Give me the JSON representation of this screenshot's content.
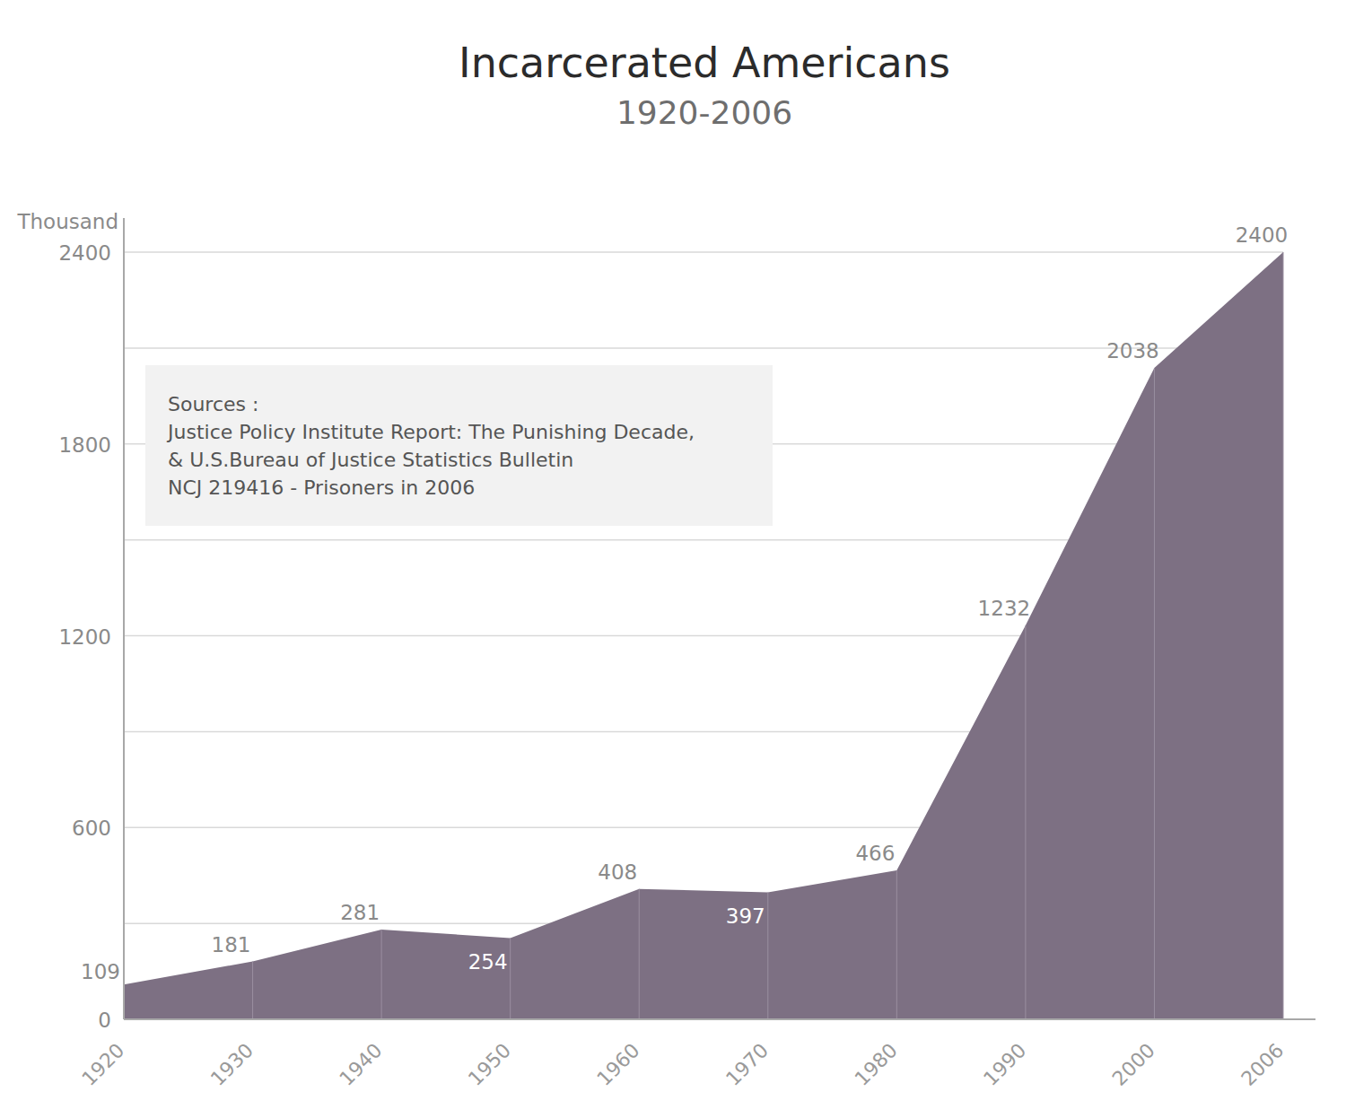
{
  "chart_data": {
    "type": "area",
    "title": "Incarcerated Americans",
    "subtitle": "1920-2006",
    "y_label": "Thousand",
    "categories": [
      "1920",
      "1930",
      "1940",
      "1950",
      "1960",
      "1970",
      "1980",
      "1990",
      "2000",
      "2006"
    ],
    "values": [
      109,
      181,
      281,
      254,
      408,
      397,
      466,
      1232,
      2038,
      2400
    ],
    "color": "#7d7083",
    "ylim": [
      0,
      2400
    ],
    "yticks": [
      0,
      600,
      1200,
      1800,
      2400
    ],
    "grid": true,
    "data_labels": true,
    "annotations": [
      "Sources :",
      "Justice Policy Institute Report: The Punishing Decade,",
      "& U.S.Bureau of Justice Statistics Bulletin",
      "NCJ 219416 - Prisoners in 2006"
    ]
  }
}
